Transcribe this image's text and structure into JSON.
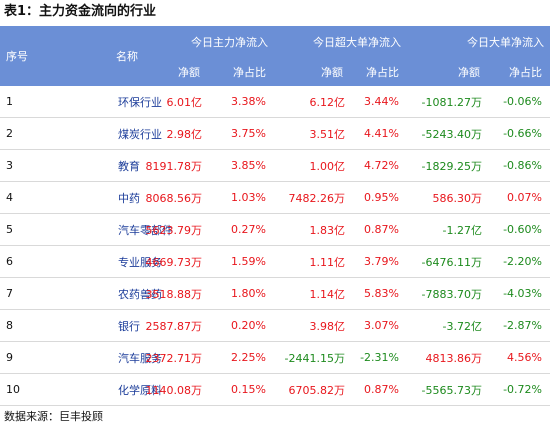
{
  "title": "表1：主力资金流向的行业",
  "header": {
    "rank": "序号",
    "name": "名称",
    "groups": [
      "今日主力净流入",
      "今日超大单净流入",
      "今日大单净流入"
    ],
    "sub_amount": "净额",
    "sub_ratio": "净占比"
  },
  "rows": [
    {
      "rank": "1",
      "name": "环保行业",
      "main_amt": "6.01亿",
      "main_pct": "3.38%",
      "xl_amt": "6.12亿",
      "xl_pct": "3.44%",
      "lg_amt": "-1081.27万",
      "lg_pct": "-0.06%"
    },
    {
      "rank": "2",
      "name": "煤炭行业",
      "main_amt": "2.98亿",
      "main_pct": "3.75%",
      "xl_amt": "3.51亿",
      "xl_pct": "4.41%",
      "lg_amt": "-5243.40万",
      "lg_pct": "-0.66%"
    },
    {
      "rank": "3",
      "name": "教育",
      "main_amt": "8191.78万",
      "main_pct": "3.85%",
      "xl_amt": "1.00亿",
      "xl_pct": "4.72%",
      "lg_amt": "-1829.25万",
      "lg_pct": "-0.86%"
    },
    {
      "rank": "4",
      "name": "中药",
      "main_amt": "8068.56万",
      "main_pct": "1.03%",
      "xl_amt": "7482.26万",
      "xl_pct": "0.95%",
      "lg_amt": "586.30万",
      "lg_pct": "0.07%"
    },
    {
      "rank": "5",
      "name": "汽车零部件",
      "main_amt": "5623.79万",
      "main_pct": "0.27%",
      "xl_amt": "1.83亿",
      "xl_pct": "0.87%",
      "lg_amt": "-1.27亿",
      "lg_pct": "-0.60%"
    },
    {
      "rank": "6",
      "name": "专业服务",
      "main_amt": "4669.73万",
      "main_pct": "1.59%",
      "xl_amt": "1.11亿",
      "xl_pct": "3.79%",
      "lg_amt": "-6476.11万",
      "lg_pct": "-2.20%"
    },
    {
      "rank": "7",
      "name": "农药兽药",
      "main_amt": "3518.88万",
      "main_pct": "1.80%",
      "xl_amt": "1.14亿",
      "xl_pct": "5.83%",
      "lg_amt": "-7883.70万",
      "lg_pct": "-4.03%"
    },
    {
      "rank": "8",
      "name": "银行",
      "main_amt": "2587.87万",
      "main_pct": "0.20%",
      "xl_amt": "3.98亿",
      "xl_pct": "3.07%",
      "lg_amt": "-3.72亿",
      "lg_pct": "-2.87%"
    },
    {
      "rank": "9",
      "name": "汽车服务",
      "main_amt": "2372.71万",
      "main_pct": "2.25%",
      "xl_amt": "-2441.15万",
      "xl_pct": "-2.31%",
      "lg_amt": "4813.86万",
      "lg_pct": "4.56%"
    },
    {
      "rank": "10",
      "name": "化学原料",
      "main_amt": "1140.08万",
      "main_pct": "0.15%",
      "xl_amt": "6705.82万",
      "xl_pct": "0.87%",
      "lg_amt": "-5565.73万",
      "lg_pct": "-0.72%"
    }
  ],
  "source": "数据来源：巨丰投顾",
  "colors": {
    "header_bg": "#6b8fd6",
    "positive": "#e8161c",
    "negative": "#1d8a1d",
    "name_text": "#1c3d9a"
  }
}
